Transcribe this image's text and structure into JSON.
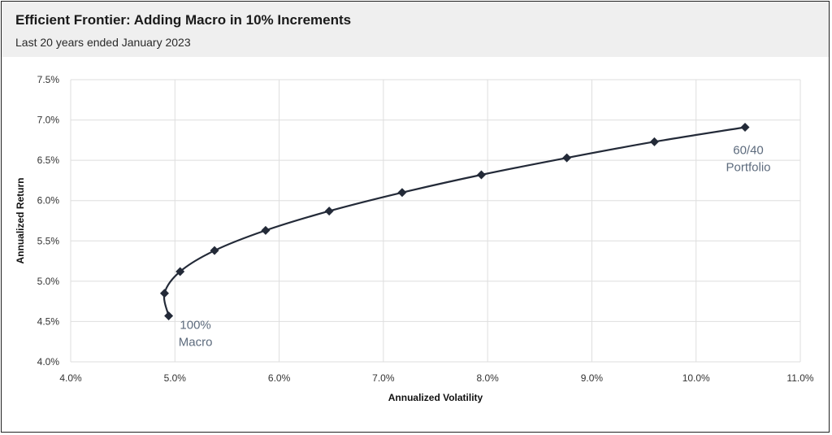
{
  "header": {
    "title": "Efficient Frontier: Adding Macro in 10% Increments",
    "subtitle": "Last 20 years ended January 2023"
  },
  "colors": {
    "line": "#232a38",
    "grid": "#dedede",
    "annotation": "#5d6b7d",
    "header_bg": "#efefef"
  },
  "chart_data": {
    "type": "line",
    "title": "Efficient Frontier: Adding Macro in 10% Increments",
    "subtitle": "Last 20 years ended January 2023",
    "xlabel": "Annualized Volatility",
    "ylabel": "Annualized Return",
    "xlim": [
      4.0,
      11.0
    ],
    "ylim": [
      4.0,
      7.5
    ],
    "grid": true,
    "x_ticks": [
      "4.0%",
      "5.0%",
      "6.0%",
      "7.0%",
      "8.0%",
      "9.0%",
      "10.0%",
      "11.0%"
    ],
    "y_ticks": [
      "4.0%",
      "4.5%",
      "5.0%",
      "5.5%",
      "6.0%",
      "6.5%",
      "7.0%",
      "7.5%"
    ],
    "series": [
      {
        "marker": "diamond",
        "points": [
          {
            "x": 4.94,
            "y": 4.57
          },
          {
            "x": 4.9,
            "y": 4.85
          },
          {
            "x": 5.05,
            "y": 5.12
          },
          {
            "x": 5.38,
            "y": 5.38
          },
          {
            "x": 5.87,
            "y": 5.63
          },
          {
            "x": 6.48,
            "y": 5.87
          },
          {
            "x": 7.18,
            "y": 6.1
          },
          {
            "x": 7.94,
            "y": 6.32
          },
          {
            "x": 8.76,
            "y": 6.53
          },
          {
            "x": 9.6,
            "y": 6.73
          },
          {
            "x": 10.47,
            "y": 6.91
          }
        ]
      }
    ],
    "annotations": [
      {
        "lines": [
          "100%",
          "Macro"
        ],
        "point_index": 0
      },
      {
        "lines": [
          "60/40",
          "Portfolio"
        ],
        "point_index": 10
      }
    ]
  }
}
